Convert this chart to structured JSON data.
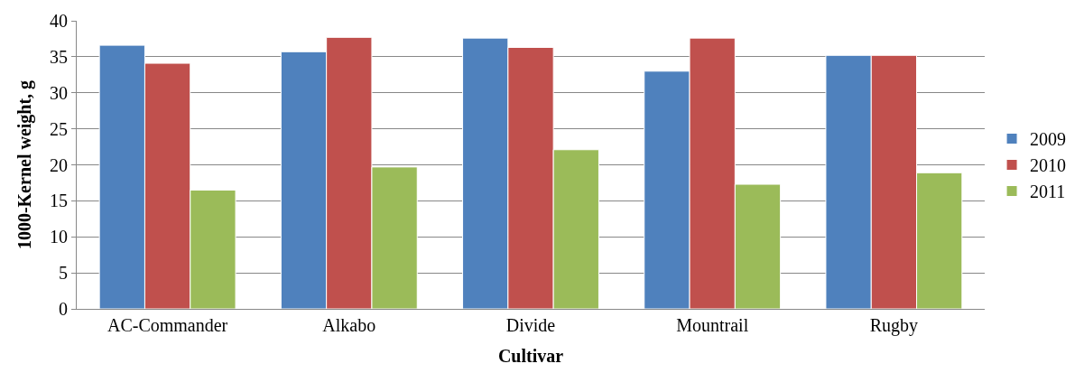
{
  "chart_data": {
    "type": "bar",
    "xlabel": "Cultivar",
    "ylabel": "1000-Kernel weight, g",
    "categories": [
      "AC-Commander",
      "Alkabo",
      "Divide",
      "Mountrail",
      "Rugby"
    ],
    "series": [
      {
        "name": "2009",
        "color": "#4f81bd",
        "values": [
          36.6,
          35.7,
          37.6,
          33.0,
          35.2
        ]
      },
      {
        "name": "2010",
        "color": "#c0504d",
        "values": [
          34.1,
          37.7,
          36.3,
          37.6,
          35.2
        ]
      },
      {
        "name": "2011",
        "color": "#9bbb59",
        "values": [
          16.5,
          19.7,
          22.1,
          17.3,
          18.9
        ]
      }
    ],
    "ylim": [
      0,
      40
    ],
    "yticks": [
      0,
      5,
      10,
      15,
      20,
      25,
      30,
      35,
      40
    ],
    "grid": "y",
    "legend": "right"
  }
}
